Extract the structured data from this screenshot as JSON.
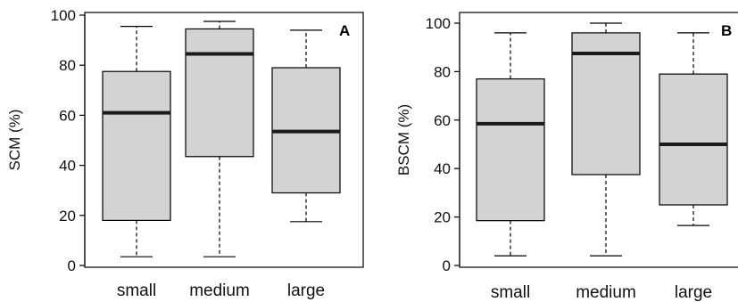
{
  "chart_data": [
    {
      "type": "boxplot",
      "panel_label": "A",
      "ylabel": "SCM (%)",
      "xlabel": "",
      "ylim": [
        0,
        100
      ],
      "yticks": [
        "0",
        "20",
        "40",
        "60",
        "80",
        "100"
      ],
      "categories": [
        "small",
        "medium",
        "large"
      ],
      "boxes": [
        {
          "category": "small",
          "min": 3.5,
          "q1": 18,
          "median": 61,
          "q3": 77.5,
          "max": 95.5
        },
        {
          "category": "medium",
          "min": 3.5,
          "q1": 43.5,
          "median": 84.5,
          "q3": 94.5,
          "max": 97.5
        },
        {
          "category": "large",
          "min": 17.5,
          "q1": 29,
          "median": 53.5,
          "q3": 79,
          "max": 94
        }
      ]
    },
    {
      "type": "boxplot",
      "panel_label": "B",
      "ylabel": "BSCM (%)",
      "xlabel": "",
      "ylim": [
        0,
        100
      ],
      "yticks": [
        "0",
        "20",
        "40",
        "60",
        "80",
        "100"
      ],
      "categories": [
        "small",
        "medium",
        "large"
      ],
      "boxes": [
        {
          "category": "small",
          "min": 4,
          "q1": 18.5,
          "median": 58.5,
          "q3": 77,
          "max": 96
        },
        {
          "category": "medium",
          "min": 4,
          "q1": 37.5,
          "median": 87.5,
          "q3": 96,
          "max": 100
        },
        {
          "category": "large",
          "min": 16.5,
          "q1": 25,
          "median": 50,
          "q3": 79,
          "max": 96
        }
      ]
    }
  ],
  "colors": {
    "box_fill": "#d3d3d3",
    "median": "#1a1a1a",
    "lines": "#000000"
  }
}
